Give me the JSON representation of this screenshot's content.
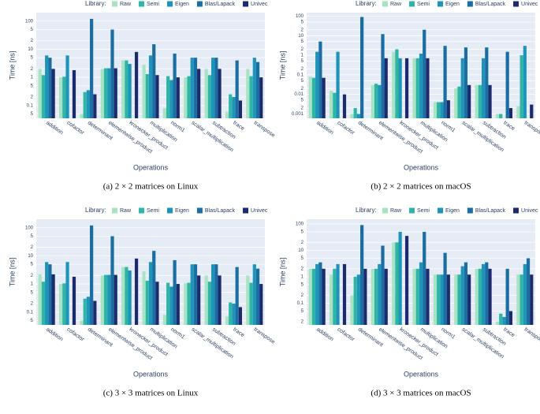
{
  "chart_data": [
    {
      "type": "bar",
      "caption": "(a)  2 × 2 matrices on Linux",
      "legend_title": "Library:",
      "ylabel": "Time [ns]",
      "xlabel": "Operations",
      "log_scale": true,
      "grid": true,
      "categories": [
        "addition",
        "cofactor",
        "determinant",
        "elementwise_product",
        "kronecker_product",
        "multiplication",
        "norm1",
        "scalar_multiplication",
        "subtraction",
        "trace",
        "transpose"
      ],
      "ylim": [
        0.035,
        200
      ],
      "yticks": [
        100,
        {
          "value": 50,
          "label": "5"
        },
        {
          "value": 20,
          "label": "2"
        },
        10,
        5,
        2,
        1,
        {
          "value": 0.5,
          "label": "5"
        },
        {
          "value": 0.2,
          "label": "2"
        },
        0.1,
        {
          "value": 0.05,
          "label": "5"
        }
      ],
      "series": [
        {
          "name": "Raw",
          "color": "#a8e4c4",
          "values": [
            2,
            1,
            0.05,
            2,
            4,
            2.8,
            0.08,
            1,
            2,
            0.06,
            2
          ]
        },
        {
          "name": "Semi",
          "color": "#2fb5a6",
          "values": [
            1.2,
            1.05,
            0.3,
            2.1,
            4,
            1.3,
            1.1,
            1.1,
            1.2,
            0.25,
            1.1
          ]
        },
        {
          "name": "Eigen",
          "color": "#1e94b8",
          "values": [
            6,
            6,
            0.35,
            2.1,
            3,
            6,
            0.8,
            5,
            5,
            0.2,
            5
          ]
        },
        {
          "name": "Blas/Lapack",
          "color": "#1b6ea2",
          "values": [
            5,
            null,
            120,
            50,
            null,
            15,
            7,
            5,
            5,
            4,
            3.5
          ]
        },
        {
          "name": "Univec",
          "color": "#1c2a6e",
          "values": [
            2,
            1.8,
            0.25,
            2.1,
            8,
            1.2,
            1,
            2,
            2,
            0.15,
            1
          ]
        }
      ]
    },
    {
      "type": "bar",
      "caption": "(b)  2 × 2 matrices on macOS",
      "legend_title": "Library:",
      "ylabel": "Time [ns]",
      "xlabel": "Operations",
      "log_scale": true,
      "grid": true,
      "categories": [
        "addition",
        "cofactor",
        "determinant",
        "elementwise_product",
        "kronecker_product",
        "multiplication",
        "norm1",
        "scalar_multiplication",
        "subtraction",
        "trace",
        "transpose"
      ],
      "ylim": [
        0.0006,
        150
      ],
      "yticks": [
        100,
        {
          "value": 50,
          "label": "5"
        },
        {
          "value": 20,
          "label": "2"
        },
        10,
        5,
        2,
        1,
        {
          "value": 0.5,
          "label": "5"
        },
        {
          "value": 0.2,
          "label": "2"
        },
        0.1,
        {
          "value": 0.05,
          "label": "5"
        },
        {
          "value": 0.02,
          "label": "2"
        },
        0.01,
        {
          "value": 0.005,
          "label": "5"
        },
        {
          "value": 0.002,
          "label": "2"
        },
        0.001
      ],
      "series": [
        {
          "name": "Raw",
          "color": "#a8e4c4",
          "values": [
            0.08,
            0.015,
            0.001,
            0.03,
            1.5,
            0.7,
            0.004,
            0.02,
            0.03,
            0.001,
            0.0025
          ]
        },
        {
          "name": "Semi",
          "color": "#2fb5a6",
          "values": [
            0.07,
            0.012,
            0.002,
            0.035,
            2,
            0.7,
            0.004,
            0.025,
            0.03,
            0.001,
            1
          ]
        },
        {
          "name": "Eigen",
          "color": "#1e94b8",
          "values": [
            1.5,
            1.5,
            0.001,
            0.03,
            0.7,
            1.2,
            0.004,
            0.7,
            0.7,
            null,
            3
          ]
        },
        {
          "name": "Blas/Lapack",
          "color": "#1b6ea2",
          "values": [
            5,
            null,
            90,
            12,
            null,
            20,
            3,
            2.5,
            2.5,
            1.5,
            null
          ]
        },
        {
          "name": "Univec",
          "color": "#1c2a6e",
          "values": [
            0.07,
            0.01,
            null,
            0.7,
            0.7,
            0.7,
            0.005,
            0.03,
            0.03,
            0.002,
            0.003
          ]
        }
      ]
    },
    {
      "type": "bar",
      "caption": "(c)  3 × 3 matrices on Linux",
      "legend_title": "Library:",
      "ylabel": "Time [ns]",
      "xlabel": "Operations",
      "log_scale": true,
      "grid": true,
      "categories": [
        "addition",
        "cofactor",
        "determinant",
        "elementwise_product",
        "kronecker_product",
        "multiplication",
        "norm1",
        "scalar_multiplication",
        "subtraction",
        "trace",
        "transpose"
      ],
      "ylim": [
        0.035,
        200
      ],
      "yticks": [
        100,
        {
          "value": 50,
          "label": "5"
        },
        {
          "value": 20,
          "label": "2"
        },
        10,
        5,
        2,
        1,
        {
          "value": 0.5,
          "label": "5"
        },
        {
          "value": 0.2,
          "label": "2"
        },
        0.1,
        {
          "value": 0.05,
          "label": "5"
        }
      ],
      "series": [
        {
          "name": "Raw",
          "color": "#a8e4c4",
          "values": [
            2.2,
            1,
            0.05,
            2,
            4,
            2.8,
            0.08,
            1.05,
            2,
            0.07,
            2
          ]
        },
        {
          "name": "Semi",
          "color": "#2fb5a6",
          "values": [
            1.2,
            1.05,
            0.3,
            2.1,
            4,
            1.3,
            1.1,
            1.1,
            1.2,
            0.22,
            1.1
          ]
        },
        {
          "name": "Eigen",
          "color": "#1e94b8",
          "values": [
            6,
            6,
            0.35,
            2.1,
            3,
            6,
            0.8,
            5,
            5,
            0.2,
            5
          ]
        },
        {
          "name": "Blas/Lapack",
          "color": "#1b6ea2",
          "values": [
            5,
            null,
            120,
            50,
            null,
            15,
            7,
            5,
            5,
            4,
            3.5
          ]
        },
        {
          "name": "Univec",
          "color": "#1c2a6e",
          "values": [
            2.2,
            1.8,
            0.25,
            2.1,
            8,
            1.2,
            1,
            2,
            2,
            0.15,
            1
          ]
        }
      ]
    },
    {
      "type": "bar",
      "caption": "(d)  3 × 3 matrices on macOS",
      "legend_title": "Library:",
      "ylabel": "Time [ns]",
      "xlabel": "Operations",
      "log_scale": true,
      "grid": true,
      "categories": [
        "addition",
        "cofactor",
        "determinant",
        "elementwise_product",
        "kronecker_product",
        "multiplication",
        "norm1",
        "scalar_multiplication",
        "subtraction",
        "trace",
        "transpose"
      ],
      "ylim": [
        0.015,
        150
      ],
      "yticks": [
        100,
        {
          "value": 50,
          "label": "5"
        },
        {
          "value": 20,
          "label": "2"
        },
        10,
        5,
        2,
        1,
        {
          "value": 0.5,
          "label": "5"
        },
        {
          "value": 0.2,
          "label": "2"
        },
        0.1,
        {
          "value": 0.05,
          "label": "5"
        },
        {
          "value": 0.02,
          "label": "2"
        }
      ],
      "series": [
        {
          "name": "Raw",
          "color": "#a8e4c4",
          "values": [
            2,
            1.2,
            0.2,
            2,
            20,
            2,
            1.2,
            1.2,
            2,
            0.02,
            1.2
          ]
        },
        {
          "name": "Semi",
          "color": "#2fb5a6",
          "values": [
            2,
            2,
            1,
            2,
            20,
            2,
            1.2,
            1.2,
            2,
            0.04,
            1.2
          ]
        },
        {
          "name": "Eigen",
          "color": "#1e94b8",
          "values": [
            3,
            3,
            1.2,
            3,
            50,
            3.5,
            1.2,
            2.5,
            3,
            0.03,
            3
          ]
        },
        {
          "name": "Blas/Lapack",
          "color": "#1b6ea2",
          "values": [
            3.5,
            null,
            90,
            15,
            null,
            50,
            8,
            3.5,
            3.5,
            2,
            5
          ]
        },
        {
          "name": "Univec",
          "color": "#1c2a6e",
          "values": [
            2,
            3,
            2,
            2,
            35,
            2,
            1.2,
            1.2,
            2,
            0.05,
            1.2
          ]
        }
      ]
    }
  ]
}
